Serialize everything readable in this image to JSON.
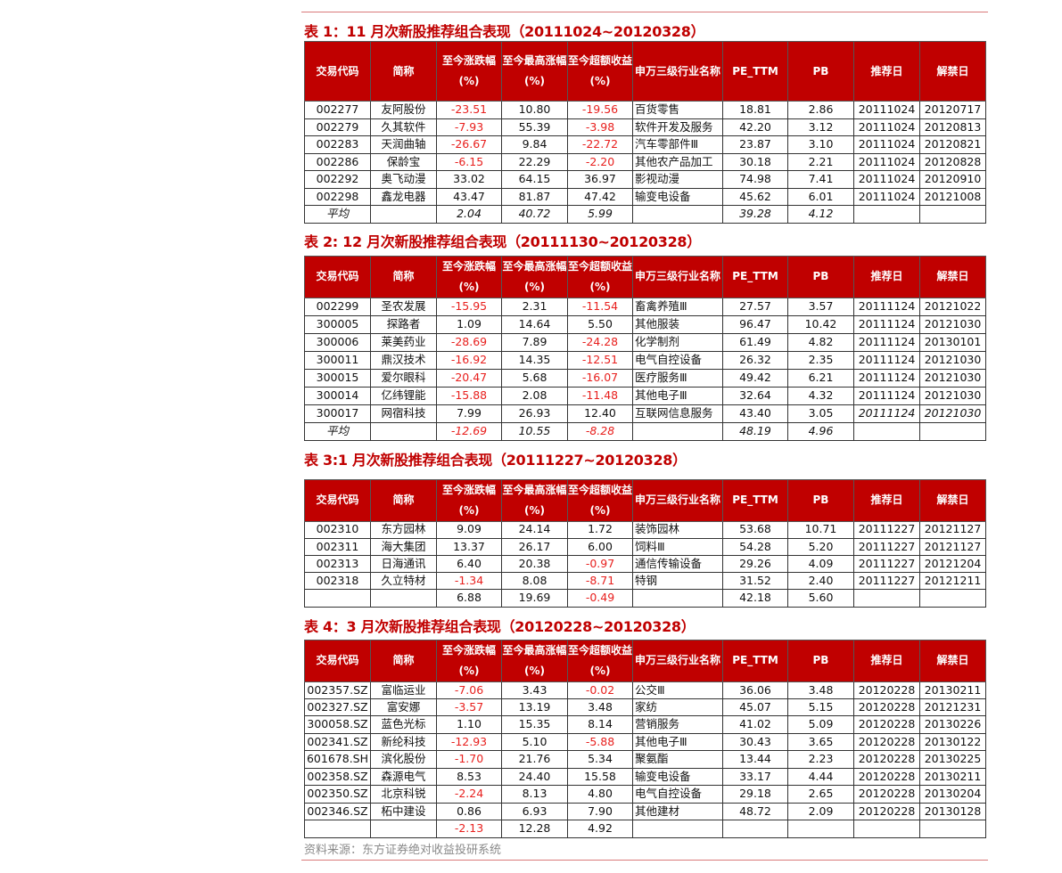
{
  "columns": [
    "交易代码",
    "简称",
    "至今涨跌幅(%)",
    "至今最高涨幅(%)",
    "至今超额收益(%)",
    "申万三级行业名称",
    "PE_TTM",
    "PB",
    "推荐日",
    "解禁日"
  ],
  "colors": {
    "accent": "#c00000",
    "negative": "#e8201e",
    "header_text": "#ffffff"
  },
  "tables": [
    {
      "title": "表 1：11 月次新股推荐组合表现（20111024~20120328）",
      "rows": [
        [
          "002277",
          "友阿股份",
          "-23.51",
          "10.80",
          "-19.56",
          "百货零售",
          "18.81",
          "2.86",
          "20111024",
          "20120717"
        ],
        [
          "002279",
          "久其软件",
          "-7.93",
          "55.39",
          "-3.98",
          "软件开发及服务",
          "42.20",
          "3.12",
          "20111024",
          "20120813"
        ],
        [
          "002283",
          "天润曲轴",
          "-26.67",
          "9.84",
          "-22.72",
          "汽车零部件Ⅲ",
          "23.87",
          "3.10",
          "20111024",
          "20120821"
        ],
        [
          "002286",
          "保龄宝",
          "-6.15",
          "22.29",
          "-2.20",
          "其他农产品加工",
          "30.18",
          "2.21",
          "20111024",
          "20120828"
        ],
        [
          "002292",
          "奥飞动漫",
          "33.02",
          "64.15",
          "36.97",
          "影视动漫",
          "74.98",
          "7.41",
          "20111024",
          "20120910"
        ],
        [
          "002298",
          "鑫龙电器",
          "43.47",
          "81.87",
          "47.42",
          "输变电设备",
          "45.62",
          "6.01",
          "20111024",
          "20121008"
        ]
      ],
      "summary": [
        "平均",
        "",
        "2.04",
        "40.72",
        "5.99",
        "",
        "39.28",
        "4.12",
        "",
        ""
      ]
    },
    {
      "title": "表 2: 12 月次新股推荐组合表现（20111130~20120328）",
      "rows": [
        [
          "002299",
          "圣农发展",
          "-15.95",
          "2.31",
          "-11.54",
          "畜禽养殖Ⅲ",
          "27.57",
          "3.57",
          "20111124",
          "20121022"
        ],
        [
          "300005",
          "探路者",
          "1.09",
          "14.64",
          "5.50",
          "其他服装",
          "96.47",
          "10.42",
          "20111124",
          "20121030"
        ],
        [
          "300006",
          "莱美药业",
          "-28.69",
          "7.89",
          "-24.28",
          "化学制剂",
          "61.49",
          "4.82",
          "20111124",
          "20130101"
        ],
        [
          "300011",
          "鼎汉技术",
          "-16.92",
          "14.35",
          "-12.51",
          "电气自控设备",
          "26.32",
          "2.35",
          "20111124",
          "20121030"
        ],
        [
          "300015",
          "爱尔眼科",
          "-20.47",
          "5.68",
          "-16.07",
          "医疗服务Ⅲ",
          "49.42",
          "6.21",
          "20111124",
          "20121030"
        ],
        [
          "300014",
          "亿纬锂能",
          "-15.88",
          "2.08",
          "-11.48",
          "其他电子Ⅲ",
          "32.64",
          "4.32",
          "20111124",
          "20121030"
        ],
        [
          "300017",
          "网宿科技",
          "7.99",
          "26.93",
          "12.40",
          "互联网信息服务",
          "43.40",
          "3.05",
          "20111124",
          "20121030"
        ]
      ],
      "summary": [
        "平均",
        "",
        "-12.69",
        "10.55",
        "-8.28",
        "",
        "48.19",
        "4.96",
        "",
        ""
      ]
    },
    {
      "title": "表 3:1 月次新股推荐组合表现（20111227~20120328）",
      "rows": [
        [
          "002310",
          "东方园林",
          "9.09",
          "24.14",
          "1.72",
          "装饰园林",
          "53.68",
          "10.71",
          "20111227",
          "20121127"
        ],
        [
          "002311",
          "海大集团",
          "13.37",
          "26.17",
          "6.00",
          "饲料Ⅲ",
          "54.28",
          "5.20",
          "20111227",
          "20121127"
        ],
        [
          "002313",
          "日海通讯",
          "6.40",
          "20.38",
          "-0.97",
          "通信传输设备",
          "29.26",
          "4.09",
          "20111227",
          "20121204"
        ],
        [
          "002318",
          "久立特材",
          "-1.34",
          "8.08",
          "-8.71",
          "特钢",
          "31.52",
          "2.40",
          "20111227",
          "20121211"
        ]
      ],
      "summary": [
        "",
        "",
        "6.88",
        "19.69",
        "-0.49",
        "",
        "42.18",
        "5.60",
        "",
        ""
      ]
    },
    {
      "title": "表 4：3 月次新股推荐组合表现（20120228~20120328）",
      "rows": [
        [
          "002357.SZ",
          "富临运业",
          "-7.06",
          "3.43",
          "-0.02",
          "公交Ⅲ",
          "36.06",
          "3.48",
          "20120228",
          "20130211"
        ],
        [
          "002327.SZ",
          "富安娜",
          "-3.57",
          "13.19",
          "3.48",
          "家纺",
          "45.07",
          "5.15",
          "20120228",
          "20121231"
        ],
        [
          "300058.SZ",
          "蓝色光标",
          "1.10",
          "15.35",
          "8.14",
          "营销服务",
          "41.02",
          "5.09",
          "20120228",
          "20130226"
        ],
        [
          "002341.SZ",
          "新纶科技",
          "-12.93",
          "5.10",
          "-5.88",
          "其他电子Ⅲ",
          "30.43",
          "3.65",
          "20120228",
          "20130122"
        ],
        [
          "601678.SH",
          "滨化股份",
          "-1.70",
          "21.76",
          "5.34",
          "聚氨酯",
          "13.44",
          "2.23",
          "20120228",
          "20130225"
        ],
        [
          "002358.SZ",
          "森源电气",
          "8.53",
          "24.40",
          "15.58",
          "输变电设备",
          "33.17",
          "4.44",
          "20120228",
          "20130211"
        ],
        [
          "002350.SZ",
          "北京科锐",
          "-2.24",
          "8.13",
          "4.80",
          "电气自控设备",
          "29.18",
          "2.65",
          "20120228",
          "20130204"
        ],
        [
          "002346.SZ",
          "柘中建设",
          "0.86",
          "6.93",
          "7.90",
          "其他建材",
          "48.72",
          "2.09",
          "20120228",
          "20130128"
        ]
      ],
      "summary": [
        "",
        "",
        "-2.13",
        "12.28",
        "4.92",
        "",
        "",
        "",
        "",
        ""
      ]
    }
  ],
  "source": "资料来源：东方证券绝对收益投研系统"
}
